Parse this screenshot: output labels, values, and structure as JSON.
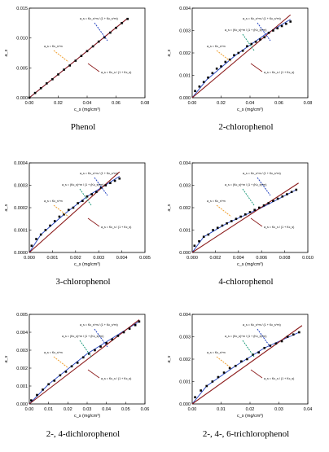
{
  "chart_data": [
    {
      "type": "scatter",
      "caption": "Phenol",
      "xlabel": "c_s (mg/cm³)",
      "ylabel": "a_s",
      "xlim": [
        0,
        0.08
      ],
      "ylim": [
        0,
        0.015
      ],
      "xticks": [
        "0.00",
        "0.02",
        "0.04",
        "0.06",
        "0.08"
      ],
      "yticks": [
        "0.000",
        "0.005",
        "0.010",
        "0.015"
      ],
      "x": [
        0.0,
        0.004,
        0.008,
        0.012,
        0.016,
        0.02,
        0.024,
        0.028,
        0.032,
        0.036,
        0.04,
        0.044,
        0.048,
        0.052,
        0.056,
        0.06,
        0.064,
        0.068
      ],
      "y": [
        0.0,
        0.0008,
        0.0016,
        0.0024,
        0.0031,
        0.0039,
        0.0047,
        0.0054,
        0.0062,
        0.007,
        0.0078,
        0.0086,
        0.0094,
        0.0101,
        0.0109,
        0.0117,
        0.0125,
        0.0132
      ],
      "langmuir_line": [
        [
          0,
          0
        ],
        [
          0.068,
          0.0133
        ]
      ],
      "sips_curve": [
        [
          0,
          0
        ],
        [
          0.068,
          0.0133
        ]
      ],
      "annotations": {
        "sips_blue": "a_s = Kc_s^m / (1 + Kc_s^m)",
        "freundlich_orange": "a_s = Kc_s^m",
        "langmuir_red": "a_s = Kc_s / (1 + Kc_s)"
      }
    },
    {
      "type": "scatter",
      "caption": "2-chlorophenol",
      "xlabel": "c_s (mg/cm³)",
      "ylabel": "a_s",
      "xlim": [
        0,
        0.08
      ],
      "ylim": [
        0,
        0.004
      ],
      "xticks": [
        "0.00",
        "0.02",
        "0.04",
        "0.06",
        "0.08"
      ],
      "yticks": [
        "0.000",
        "0.001",
        "0.002",
        "0.003",
        "0.004"
      ],
      "x": [
        0.002,
        0.005,
        0.008,
        0.011,
        0.014,
        0.017,
        0.02,
        0.023,
        0.026,
        0.029,
        0.032,
        0.035,
        0.038,
        0.041,
        0.044,
        0.047,
        0.05,
        0.053,
        0.056,
        0.059,
        0.062,
        0.065,
        0.068
      ],
      "y": [
        0.0003,
        0.0005,
        0.0007,
        0.0009,
        0.0011,
        0.0013,
        0.0014,
        0.0016,
        0.0017,
        0.0019,
        0.002,
        0.0021,
        0.0023,
        0.0024,
        0.0025,
        0.0026,
        0.0027,
        0.0029,
        0.003,
        0.0031,
        0.0032,
        0.0033,
        0.0034
      ],
      "langmuir_line": [
        [
          0,
          0
        ],
        [
          0.068,
          0.0037
        ]
      ],
      "sips_curve": [
        [
          0,
          0
        ],
        [
          0.01,
          0.0008
        ],
        [
          0.03,
          0.0019
        ],
        [
          0.05,
          0.0028
        ],
        [
          0.068,
          0.0035
        ]
      ],
      "annotations": {
        "sips_blue": "a_s = Kc_s^m / (1 + Kc_s^m)",
        "toth_green": "a_s = (Kc_s)^m / (1 + (Kc_s)^m)",
        "freundlich_orange": "a_s = Kc_s^m",
        "langmuir_red": "a_s = Kc_s / (1 + Kc_s)"
      }
    },
    {
      "type": "scatter",
      "caption": "3-chlorophenol",
      "xlabel": "c_s (mg/cm³)",
      "ylabel": "a_s",
      "xlim": [
        0,
        0.005
      ],
      "ylim": [
        0,
        0.0004
      ],
      "xticks": [
        "0.000",
        "0.001",
        "0.002",
        "0.003",
        "0.004",
        "0.005"
      ],
      "yticks": [
        "0.0000",
        "0.0001",
        "0.0002",
        "0.0003",
        "0.0004"
      ],
      "x": [
        0.0001,
        0.0003,
        0.0005,
        0.0007,
        0.0009,
        0.0011,
        0.0013,
        0.0015,
        0.0017,
        0.0019,
        0.0021,
        0.0023,
        0.0025,
        0.0027,
        0.0029,
        0.0031,
        0.0033,
        0.0035,
        0.0037,
        0.0039
      ],
      "y": [
        3e-05,
        6e-05,
        8e-05,
        0.0001,
        0.00012,
        0.00014,
        0.00016,
        0.00017,
        0.00019,
        0.0002,
        0.00022,
        0.00023,
        0.00025,
        0.00026,
        0.00027,
        0.00029,
        0.0003,
        0.00031,
        0.00032,
        0.00033
      ],
      "langmuir_line": [
        [
          0,
          0
        ],
        [
          0.0039,
          0.00036
        ]
      ],
      "sips_curve": [
        [
          0,
          0
        ],
        [
          0.0005,
          8e-05
        ],
        [
          0.0015,
          0.00017
        ],
        [
          0.0025,
          0.00025
        ],
        [
          0.0039,
          0.00034
        ]
      ],
      "annotations": {
        "sips_blue": "a_s = Kc_s^m / (1 + Kc_s^m)",
        "toth_green": "a_s = (Kc_s)^m / (1 + (Kc_s)^m)",
        "freundlich_orange": "a_s = Kc_s^m",
        "langmuir_red": "a_s = Kc_s / (1 + Kc_s)"
      }
    },
    {
      "type": "scatter",
      "caption": "4-chlorophenol",
      "xlabel": "c_s (mg/cm³)",
      "ylabel": "a_s",
      "xlim": [
        0,
        0.01
      ],
      "ylim": [
        0,
        0.004
      ],
      "xticks": [
        "0.000",
        "0.002",
        "0.004",
        "0.006",
        "0.008",
        "0.010"
      ],
      "yticks": [
        "0.000",
        "0.001",
        "0.002",
        "0.003",
        "0.004"
      ],
      "x": [
        0.0002,
        0.0006,
        0.001,
        0.0014,
        0.0018,
        0.0022,
        0.0026,
        0.003,
        0.0034,
        0.0038,
        0.0042,
        0.0046,
        0.005,
        0.0054,
        0.0058,
        0.0062,
        0.0066,
        0.007,
        0.0074,
        0.0078,
        0.0082,
        0.0086,
        0.009
      ],
      "y": [
        0.0003,
        0.0005,
        0.0007,
        0.0008,
        0.001,
        0.0011,
        0.0012,
        0.0013,
        0.0014,
        0.0015,
        0.0016,
        0.0017,
        0.0018,
        0.0019,
        0.002,
        0.0021,
        0.0022,
        0.0023,
        0.0024,
        0.0025,
        0.0026,
        0.0027,
        0.0028
      ],
      "langmuir_line": [
        [
          0,
          0
        ],
        [
          0.0092,
          0.0031
        ]
      ],
      "sips_curve": [
        [
          0,
          0
        ],
        [
          0.001,
          0.0007
        ],
        [
          0.003,
          0.0013
        ],
        [
          0.006,
          0.002
        ],
        [
          0.009,
          0.0028
        ]
      ],
      "annotations": {
        "sips_blue": "a_s = Kc_s^m / (1 + Kc_s^m)",
        "toth_green": "a_s = (Kc_s)^m / (1 + (Kc_s)^m)",
        "freundlich_orange": "a_s = Kc_s^m",
        "langmuir_red": "a_s = Kc_s / (1 + Kc_s)"
      }
    },
    {
      "type": "scatter",
      "caption": "2-, 4-dichlorophenol",
      "xlabel": "c_s (mg/cm³)",
      "ylabel": "a_s",
      "xlim": [
        0,
        0.06
      ],
      "ylim": [
        0,
        0.005
      ],
      "xticks": [
        "0.00",
        "0.01",
        "0.02",
        "0.03",
        "0.04",
        "0.05",
        "0.06"
      ],
      "yticks": [
        "0.000",
        "0.001",
        "0.002",
        "0.003",
        "0.004",
        "0.005"
      ],
      "x": [
        0.001,
        0.004,
        0.007,
        0.01,
        0.013,
        0.016,
        0.019,
        0.022,
        0.025,
        0.028,
        0.031,
        0.034,
        0.037,
        0.04,
        0.043,
        0.046,
        0.049,
        0.052,
        0.055,
        0.057
      ],
      "y": [
        0.0002,
        0.0005,
        0.0008,
        0.0011,
        0.0013,
        0.0016,
        0.0018,
        0.0021,
        0.0023,
        0.0026,
        0.0028,
        0.003,
        0.0032,
        0.0034,
        0.0036,
        0.0038,
        0.004,
        0.0042,
        0.0044,
        0.0046
      ],
      "langmuir_line": [
        [
          0,
          0
        ],
        [
          0.057,
          0.0047
        ]
      ],
      "sips_curve": [
        [
          0,
          0
        ],
        [
          0.01,
          0.0011
        ],
        [
          0.03,
          0.0028
        ],
        [
          0.057,
          0.0046
        ]
      ],
      "annotations": {
        "sips_blue": "a_s = Kc_s^m / (1 + Kc_s^m)",
        "toth_green": "a_s = (Kc_s)^m / (1 + (Kc_s)^m)",
        "freundlich_orange": "a_s = Kc_s^m",
        "langmuir_red": "a_s = Kc_s / (1 + Kc_s)"
      }
    },
    {
      "type": "scatter",
      "caption": "2-, 4-, 6-trichlorophenol",
      "xlabel": "c_s (mg/cm³)",
      "ylabel": "a_s",
      "xlim": [
        0,
        0.04
      ],
      "ylim": [
        0,
        0.004
      ],
      "xticks": [
        "0.00",
        "0.01",
        "0.02",
        "0.03",
        "0.04"
      ],
      "yticks": [
        "0.000",
        "0.001",
        "0.002",
        "0.003",
        "0.004"
      ],
      "x": [
        0.001,
        0.003,
        0.005,
        0.007,
        0.009,
        0.011,
        0.013,
        0.015,
        0.017,
        0.019,
        0.021,
        0.023,
        0.025,
        0.027,
        0.029,
        0.031,
        0.033,
        0.035,
        0.037
      ],
      "y": [
        0.0003,
        0.0006,
        0.0008,
        0.001,
        0.0012,
        0.0014,
        0.0016,
        0.0017,
        0.0019,
        0.002,
        0.0022,
        0.0023,
        0.0025,
        0.0026,
        0.0027,
        0.0028,
        0.003,
        0.0031,
        0.0032
      ],
      "langmuir_line": [
        [
          0,
          0
        ],
        [
          0.038,
          0.0035
        ]
      ],
      "sips_curve": [
        [
          0,
          0
        ],
        [
          0.005,
          0.0008
        ],
        [
          0.015,
          0.0017
        ],
        [
          0.025,
          0.0025
        ],
        [
          0.037,
          0.0032
        ]
      ],
      "annotations": {
        "sips_blue": "a_s = Kc_s^m / (1 + Kc_s^m)",
        "toth_green": "a_s = (Kc_s)^m / (1 + (Kc_s)^m)",
        "freundlich_orange": "a_s = Kc_s^m",
        "langmuir_red": "a_s = Kc_s / (1 + Kc_s)"
      }
    }
  ],
  "colors": {
    "langmuir": "#8b1a1a",
    "sips": "#1f3fbf",
    "toth": "#1e9a7a",
    "freundlich": "#f0a030",
    "points": "#000000",
    "axis": "#000000"
  }
}
